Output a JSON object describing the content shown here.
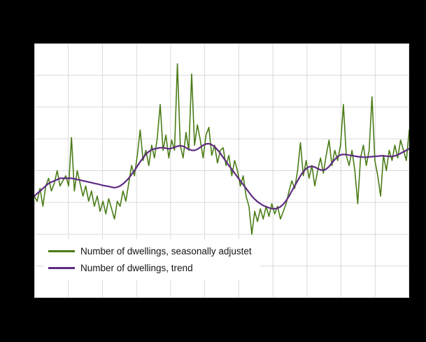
{
  "chart": {
    "background_color": "#000000",
    "plot_background_color": "#ffffff",
    "grid_color": "#d9d9d9",
    "legend": [
      {
        "label": "Number of dwellings, seasonally adjustet",
        "color": "#4a7c16"
      },
      {
        "label": "Number of dwellings, trend",
        "color": "#5e2a84"
      }
    ]
  },
  "chart_data": {
    "type": "line",
    "title": "",
    "xlabel": "",
    "ylabel": "",
    "value_scale": "relative 0-100 (no axis tick labels visible in image)",
    "ylim": [
      0,
      100
    ],
    "grid": true,
    "grid_x_divisions": 11,
    "grid_y_divisions": 8,
    "legend_position": "bottom-left-inside",
    "series": [
      {
        "name": "Number of dwellings, seasonally adjustet",
        "color": "#4a7c16",
        "stroke_width": 1.6,
        "values": [
          40,
          38,
          43,
          36,
          44,
          47,
          42,
          45,
          50,
          44,
          46,
          48,
          44,
          63,
          42,
          50,
          45,
          40,
          44,
          38,
          42,
          36,
          40,
          34,
          38,
          33,
          39,
          35,
          31,
          38,
          36,
          42,
          38,
          45,
          52,
          48,
          56,
          66,
          54,
          58,
          52,
          60,
          55,
          63,
          76,
          58,
          64,
          55,
          62,
          58,
          92,
          60,
          55,
          65,
          58,
          88,
          60,
          68,
          62,
          55,
          64,
          67,
          56,
          60,
          53,
          58,
          59,
          52,
          56,
          48,
          54,
          50,
          44,
          48,
          40,
          36,
          25,
          34,
          30,
          35,
          31,
          36,
          32,
          37,
          33,
          36,
          31,
          34,
          37,
          42,
          46,
          43,
          50,
          61,
          48,
          54,
          47,
          52,
          44,
          50,
          55,
          49,
          56,
          62,
          52,
          58,
          54,
          60,
          76,
          56,
          52,
          58,
          50,
          37,
          55,
          60,
          52,
          58,
          79,
          54,
          48,
          40,
          56,
          50,
          58,
          54,
          60,
          55,
          62,
          58,
          54,
          66
        ]
      },
      {
        "name": "Number of dwellings, trend",
        "color": "#5e2a84",
        "stroke_width": 2.2,
        "values": [
          40,
          41,
          42,
          43,
          44,
          45,
          45.5,
          46,
          46.5,
          47,
          47,
          47,
          47,
          47,
          46.8,
          46.5,
          46.3,
          46,
          45.8,
          45.5,
          45.3,
          45,
          44.8,
          44.5,
          44.2,
          44,
          43.8,
          43.5,
          43.3,
          43.5,
          44,
          44.8,
          45.8,
          47,
          48.5,
          50,
          51.8,
          53.5,
          55,
          56.5,
          57.5,
          58.2,
          58.6,
          58.8,
          59,
          59,
          58.8,
          58.6,
          58.8,
          59.2,
          59.6,
          59.8,
          59.6,
          59,
          58.4,
          58,
          58,
          58.4,
          59.2,
          60,
          60.5,
          60.6,
          60.2,
          59.4,
          58.2,
          56.8,
          55.2,
          53.6,
          52,
          50.5,
          49,
          47.5,
          46,
          44.5,
          43,
          41.5,
          40,
          38.8,
          37.8,
          37,
          36.3,
          35.8,
          35.4,
          35.1,
          35,
          35.2,
          35.8,
          36.8,
          38.2,
          40,
          42,
          44,
          46,
          48,
          49.6,
          50.8,
          51.5,
          51.7,
          51.4,
          50.8,
          50.3,
          50.2,
          50.6,
          51.6,
          53,
          54.4,
          55.6,
          56.2,
          56.4,
          56.3,
          56.1,
          55.9,
          55.7,
          55.5,
          55.4,
          55.3,
          55.3,
          55.4,
          55.5,
          55.6,
          55.7,
          55.8,
          55.8,
          55.7,
          55.6,
          55.6,
          55.8,
          56.2,
          56.8,
          57.4,
          58,
          58.6
        ]
      }
    ]
  }
}
